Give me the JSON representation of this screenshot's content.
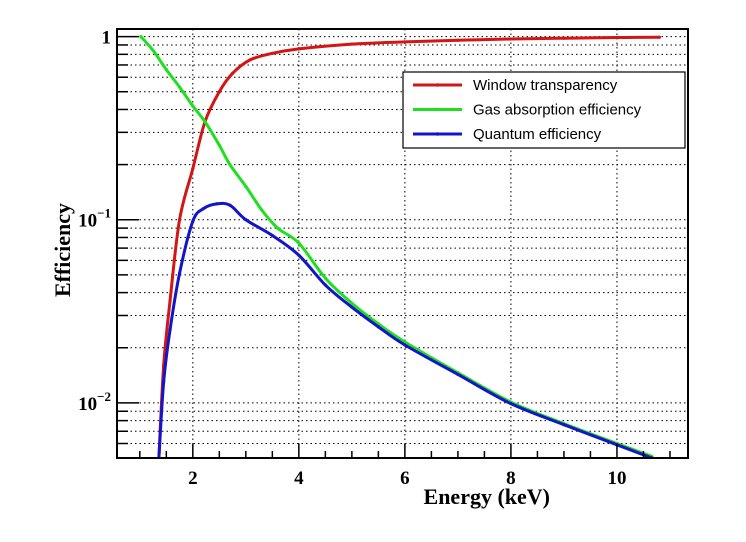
{
  "chart_data": {
    "type": "line",
    "title": "",
    "xlabel": "Energy (keV)",
    "ylabel": "Efficiency",
    "xlim": [
      0.57,
      11.34
    ],
    "ylim": [
      0.005,
      1.1
    ],
    "yscale": "log",
    "grid": true,
    "x_ticks": [
      2,
      4,
      6,
      8,
      10
    ],
    "x_tick_labels": [
      "2",
      "4",
      "6",
      "8",
      "10"
    ],
    "y_ticks": [
      0.01,
      0.1,
      1
    ],
    "y_tick_labels": [
      {
        "base": "10",
        "exp": "−2"
      },
      {
        "base": "10",
        "exp": "−1"
      },
      {
        "base": "1",
        "exp": ""
      }
    ],
    "legend_position": "top-right",
    "series": [
      {
        "name": "Window transparency",
        "color": "#d41515",
        "x": [
          1.36,
          1.45,
          1.57,
          1.75,
          2.0,
          2.23,
          2.5,
          2.75,
          3.08,
          3.5,
          4.0,
          5.0,
          6.0,
          7.0,
          8.0,
          9.0,
          10.0,
          10.8
        ],
        "y": [
          0.005,
          0.016,
          0.036,
          0.1,
          0.19,
          0.343,
          0.5,
          0.63,
          0.746,
          0.81,
          0.857,
          0.91,
          0.935,
          0.955,
          0.97,
          0.98,
          0.988,
          0.992
        ]
      },
      {
        "name": "Gas absorption  efficiency",
        "color": "#1ee01e",
        "x": [
          1.02,
          1.25,
          1.5,
          1.75,
          2.0,
          2.23,
          2.5,
          2.7,
          3.0,
          3.3,
          3.6,
          4.0,
          4.5,
          5.0,
          5.5,
          6.0,
          7.0,
          8.0,
          9.0,
          10.0,
          10.66
        ],
        "y": [
          1.0,
          0.84,
          0.66,
          0.53,
          0.418,
          0.343,
          0.255,
          0.2,
          0.152,
          0.113,
          0.09,
          0.0745,
          0.048,
          0.035,
          0.027,
          0.0215,
          0.0146,
          0.0101,
          0.0077,
          0.006,
          0.0051
        ]
      },
      {
        "name": "Quantum efficiency",
        "color": "#1414c8",
        "x": [
          1.36,
          1.45,
          1.57,
          1.75,
          2.0,
          2.2,
          2.45,
          2.7,
          3.0,
          3.5,
          4.0,
          4.5,
          5.0,
          5.5,
          6.0,
          7.0,
          8.0,
          9.0,
          10.0,
          10.66
        ],
        "y": [
          0.005,
          0.013,
          0.025,
          0.051,
          0.098,
          0.115,
          0.122,
          0.12,
          0.1,
          0.082,
          0.064,
          0.044,
          0.0333,
          0.026,
          0.0207,
          0.0143,
          0.0099,
          0.0076,
          0.0059,
          0.005
        ]
      }
    ]
  }
}
